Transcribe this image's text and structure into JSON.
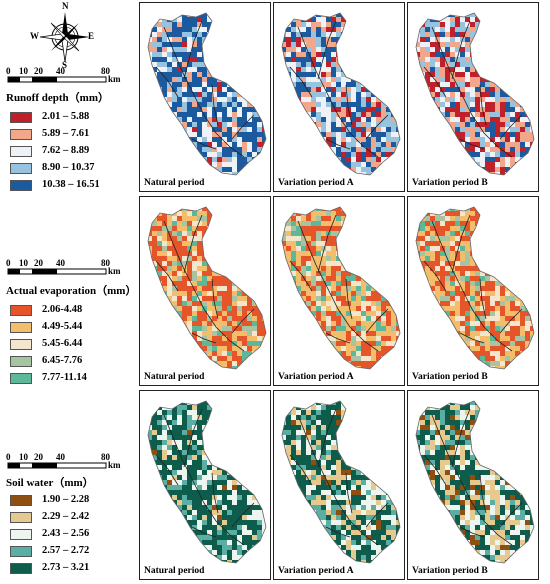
{
  "compass": {
    "n": "N",
    "s": "S",
    "e": "E",
    "w": "W"
  },
  "scale": {
    "ticks": [
      "0",
      "10",
      "20",
      "40",
      "80"
    ],
    "unit": "km"
  },
  "legends": [
    {
      "title": "Runoff depth（mm）",
      "items": [
        {
          "label": "2.01 – 5.88",
          "color": "#c0202a"
        },
        {
          "label": "5.89 – 7.61",
          "color": "#f2a68a"
        },
        {
          "label": "7.62 – 8.89",
          "color": "#eef2f6"
        },
        {
          "label": "8.90 – 10.37",
          "color": "#97c3df"
        },
        {
          "label": "10.38 – 16.51",
          "color": "#1c5aa0"
        }
      ]
    },
    {
      "title": "Actual evaporation（mm）",
      "items": [
        {
          "label": "2.06-4.48",
          "color": "#e6552a"
        },
        {
          "label": "4.49-5.44",
          "color": "#f3bd6c"
        },
        {
          "label": "5.45-6.44",
          "color": "#f4e6cc"
        },
        {
          "label": "6.45-7.76",
          "color": "#a6c3a2"
        },
        {
          "label": "7.77-11.14",
          "color": "#5db89a"
        }
      ]
    },
    {
      "title": "Soil water（mm）",
      "items": [
        {
          "label": "1.90 – 2.28",
          "color": "#8e4f10"
        },
        {
          "label": "2.29 – 2.42",
          "color": "#e6c98f"
        },
        {
          "label": "2.43 – 2.56",
          "color": "#eef4ee"
        },
        {
          "label": "2.57 – 2.72",
          "color": "#5aaea3"
        },
        {
          "label": "2.73 – 3.21",
          "color": "#0d5c4c"
        }
      ]
    }
  ],
  "panel_labels": [
    "Natural period",
    "Variation period A",
    "Variation period B"
  ],
  "map_weights": [
    [
      [
        0.04,
        0.12,
        0.22,
        0.22,
        0.4
      ],
      [
        0.14,
        0.2,
        0.22,
        0.2,
        0.24
      ],
      [
        0.28,
        0.22,
        0.2,
        0.16,
        0.14
      ]
    ],
    [
      [
        0.4,
        0.26,
        0.14,
        0.1,
        0.1
      ],
      [
        0.38,
        0.28,
        0.14,
        0.1,
        0.1
      ],
      [
        0.34,
        0.28,
        0.16,
        0.12,
        0.1
      ]
    ],
    [
      [
        0.02,
        0.08,
        0.22,
        0.18,
        0.5
      ],
      [
        0.06,
        0.16,
        0.22,
        0.16,
        0.4
      ],
      [
        0.12,
        0.22,
        0.22,
        0.12,
        0.32
      ]
    ]
  ]
}
